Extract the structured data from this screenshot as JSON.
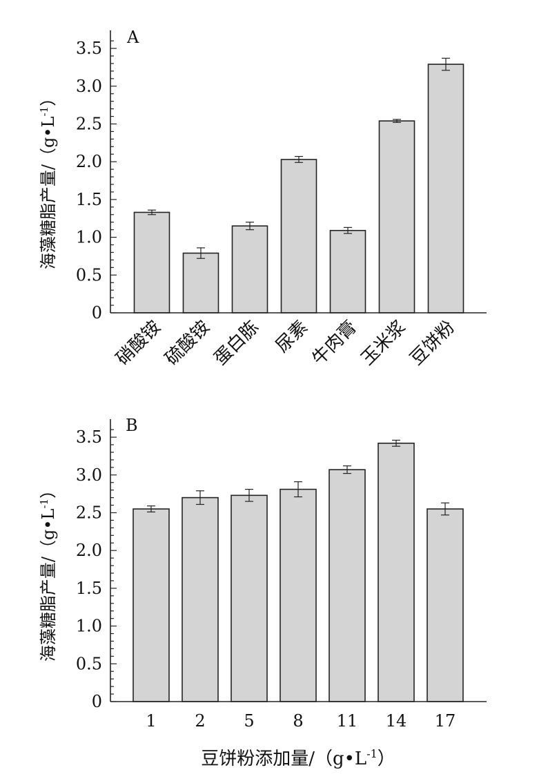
{
  "chart_data": [
    {
      "type": "bar",
      "panel_label": "A",
      "categories": [
        "硝酸铵",
        "硫酸铵",
        "蛋白胨",
        "尿素",
        "牛肉膏",
        "玉米浆",
        "豆饼粉"
      ],
      "values": [
        1.33,
        0.79,
        1.15,
        2.03,
        1.09,
        2.54,
        3.29
      ],
      "errors": [
        0.03,
        0.07,
        0.05,
        0.04,
        0.04,
        0.02,
        0.08
      ],
      "ylabel": "海藻糖脂产量/（g•L-1）",
      "ylabel_main": "海藻糖脂产量/（g•L",
      "ylabel_sup": "-1",
      "ylabel_close": "）",
      "xlabel": "",
      "ylim": [
        0,
        3.6
      ],
      "yticks": [
        "0",
        "0.5",
        "1.0",
        "1.5",
        "2.0",
        "2.5",
        "3.0",
        "3.5"
      ],
      "bar_color": "#d4d4d4",
      "grid": false
    },
    {
      "type": "bar",
      "panel_label": "B",
      "categories": [
        "1",
        "2",
        "5",
        "8",
        "11",
        "14",
        "17"
      ],
      "values": [
        2.55,
        2.7,
        2.73,
        2.81,
        3.07,
        3.42,
        2.55
      ],
      "errors": [
        0.04,
        0.09,
        0.08,
        0.1,
        0.05,
        0.04,
        0.08
      ],
      "ylabel": "海藻糖脂产量/（g•L-1）",
      "ylabel_main": "海藻糖脂产量/（g•L",
      "ylabel_sup": "-1",
      "ylabel_close": "）",
      "xlabel": "豆饼粉添加量/（g•L-1）",
      "xlabel_main": "豆饼粉添加量/（g•L",
      "xlabel_sup": "-1",
      "xlabel_close": "）",
      "ylim": [
        0,
        3.6
      ],
      "yticks": [
        "0",
        "0.5",
        "1.0",
        "1.5",
        "2.0",
        "2.5",
        "3.0",
        "3.5"
      ],
      "bar_color": "#d4d4d4",
      "grid": false
    }
  ]
}
